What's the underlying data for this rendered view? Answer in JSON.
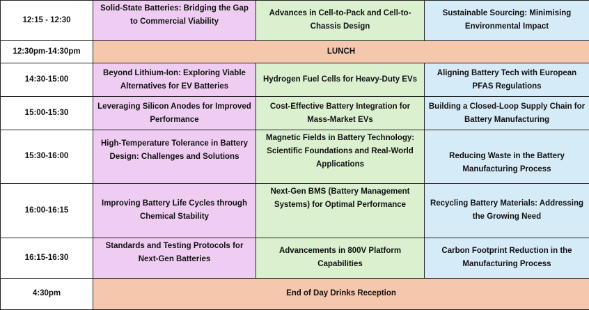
{
  "rows": [
    {
      "time": "12:15 - 12:30",
      "sessions": [
        "Solid-State Batteries: Bridging the Gap to Commercial Viability",
        "Advances in Cell-to-Pack and Cell-to-Chassis Design",
        "Sustainable Sourcing: Minimising Environmental Impact"
      ]
    },
    {
      "time": "12:30pm-14:30pm",
      "full": "LUNCH"
    },
    {
      "time": "14:30-15:00",
      "sessions": [
        "Beyond Lithium-Ion: Exploring Viable Alternatives for EV Batteries",
        "Hydrogen Fuel Cells for Heavy-Duty EVs",
        "Aligning Battery Tech with European PFAS Regulations"
      ]
    },
    {
      "time": "15:00-15:30",
      "sessions": [
        "Leveraging Silicon Anodes for Improved Performance",
        "Cost-Effective Battery Integration for Mass-Market EVs",
        "Building a Closed-Loop Supply Chain for Battery Manufacturing"
      ]
    },
    {
      "time": "15:30-16:00",
      "sessions": [
        "High-Temperature Tolerance in Battery Design: Challenges and Solutions",
        "Magnetic Fields in Battery Technology: Scientific Foundations and Real-World Applications",
        "Reducing Waste in the Battery Manufacturing Process"
      ]
    },
    {
      "time": "16:00-16:15",
      "sessions": [
        "Improving Battery Life Cycles through Chemical Stability",
        "Next-Gen BMS (Battery Management Systems) for Optimal Performance",
        "Recycling Battery Materials: Addressing the Growing Need"
      ]
    },
    {
      "time": "16:15-16:30",
      "sessions": [
        "Standards and Testing Protocols for Next-Gen Batteries",
        "Advancements in 800V Platform Capabilities",
        "Carbon Footprint Reduction in the Manufacturing Process"
      ]
    },
    {
      "time": "4:30pm",
      "full": "End of Day Drinks Reception"
    }
  ],
  "colors": {
    "track1": "#efcdf2",
    "track2": "#daf0cf",
    "track3": "#d6ebf8",
    "full_width": "#f5c7ad",
    "time": "#ffffff",
    "border": "#222222"
  }
}
